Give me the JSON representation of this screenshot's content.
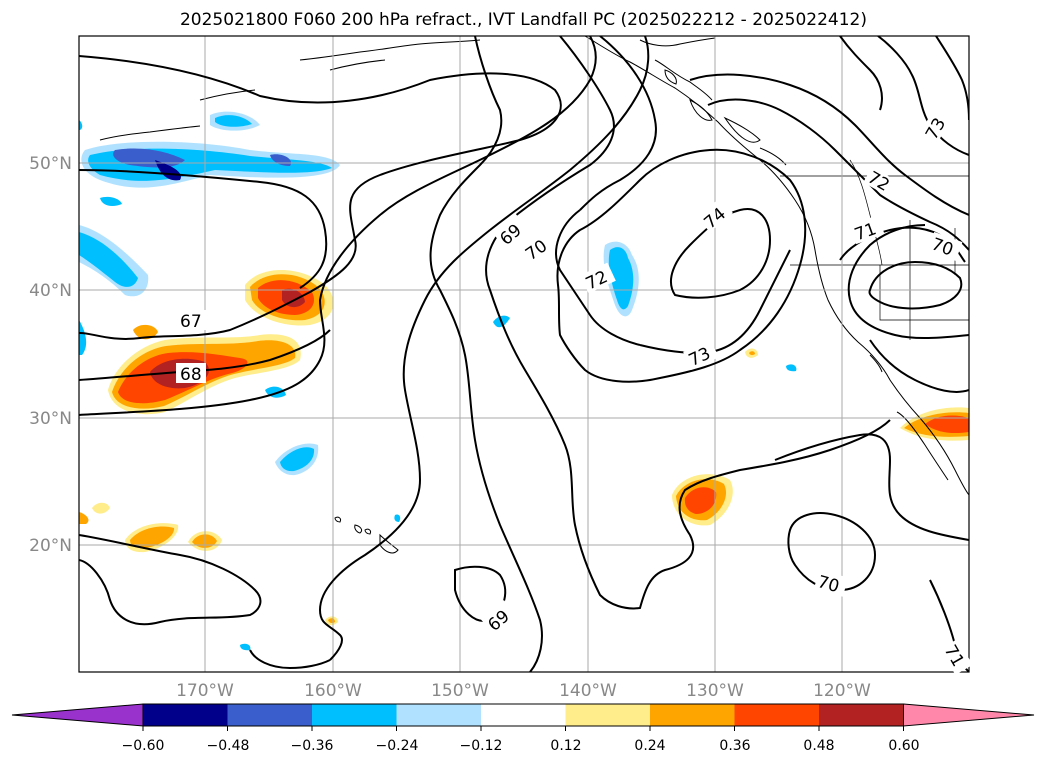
{
  "title": "2025021800 F060 200 hPa refract., IVT Landfall PC (2025022212 - 2025022412)",
  "lat_labels": [
    "50°N",
    "40°N",
    "30°N",
    "20°N"
  ],
  "lon_labels": [
    "170°W",
    "160°W",
    "150°W",
    "140°W",
    "130°W",
    "120°W"
  ],
  "contour_labels": [
    "67",
    "68",
    "69",
    "70",
    "72",
    "74",
    "73",
    "71",
    "70",
    "73",
    "72",
    "70",
    "69",
    "71"
  ],
  "colorbar": {
    "ticks": [
      "−0.60",
      "−0.48",
      "−0.36",
      "−0.24",
      "−0.12",
      "0.12",
      "0.24",
      "0.36",
      "0.48",
      "0.60"
    ],
    "colors": [
      "#9932cc",
      "#00008b",
      "#3a5fcd",
      "#00bfff",
      "#b0e2ff",
      "#ffffff",
      "#ffec8b",
      "#ffa500",
      "#ff4500",
      "#b22222",
      "#ff88aa"
    ]
  }
}
